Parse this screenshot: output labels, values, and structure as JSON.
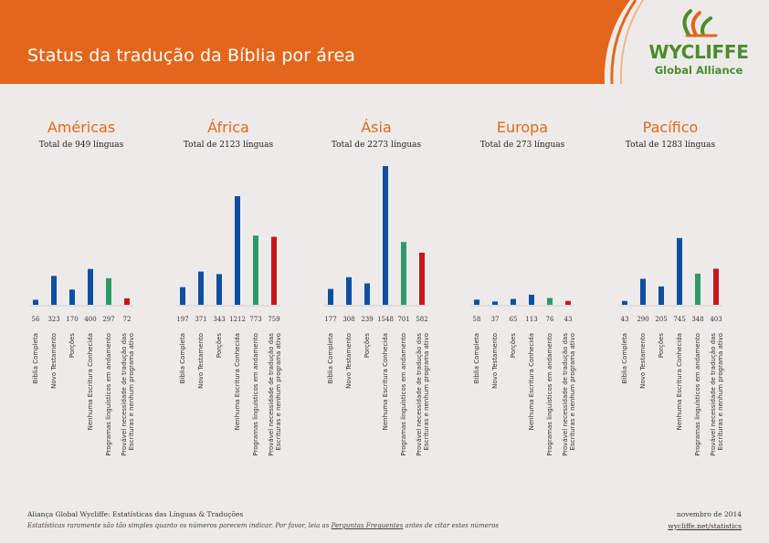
{
  "header": {
    "title": "Status da tradução da Bíblia por área",
    "bar_color": "#e4661c",
    "logo_name": "WYCLIFFE",
    "logo_sub": "Global Alliance",
    "logo_color": "#4c8c2a",
    "logo_icon": "wycliffe-swirl-logo"
  },
  "chart_data": {
    "type": "bar",
    "categories": [
      "Bíblia Completa",
      "Novo Testamento",
      "Porções",
      "Nenhuma Escritura Conhecida",
      "Programas linguísticos em andamento",
      [
        "Provável necessidade de tradução das",
        "Escrituras e nenhum programa ativo"
      ]
    ],
    "colors": [
      "#0f4fa1",
      "#0f4fa1",
      "#0f4fa1",
      "#0f4fa1",
      "#2e9a6b",
      "#c8161d"
    ],
    "ylim": [
      0,
      1548
    ],
    "regions": [
      {
        "name": "Américas",
        "total": "Total de 949 línguas",
        "values": [
          56,
          323,
          170,
          400,
          297,
          72
        ]
      },
      {
        "name": "África",
        "total": "Total de 2123 línguas",
        "values": [
          197,
          371,
          343,
          1212,
          773,
          759
        ]
      },
      {
        "name": "Ásia",
        "total": "Total de 2273 línguas",
        "values": [
          177,
          308,
          239,
          1548,
          701,
          582
        ]
      },
      {
        "name": "Europa",
        "total": "Total de 273 línguas",
        "values": [
          58,
          37,
          65,
          113,
          76,
          43
        ]
      },
      {
        "name": "Pacífico",
        "total": "Total de 1283 línguas",
        "values": [
          43,
          290,
          205,
          745,
          348,
          403
        ]
      }
    ]
  },
  "footer": {
    "source": "Aliança Global Wycliffe: Estatísticas das Línguas & Traduções",
    "note_before": "Estatísticas raramente são tão simples quanto os números parecem indicar. Por favor, leia as ",
    "note_link": "Perguntas Frequentes",
    "note_after": " antes de citar estes números",
    "date": "novembro de 2014",
    "url": "wycliffe.net/statistics"
  }
}
